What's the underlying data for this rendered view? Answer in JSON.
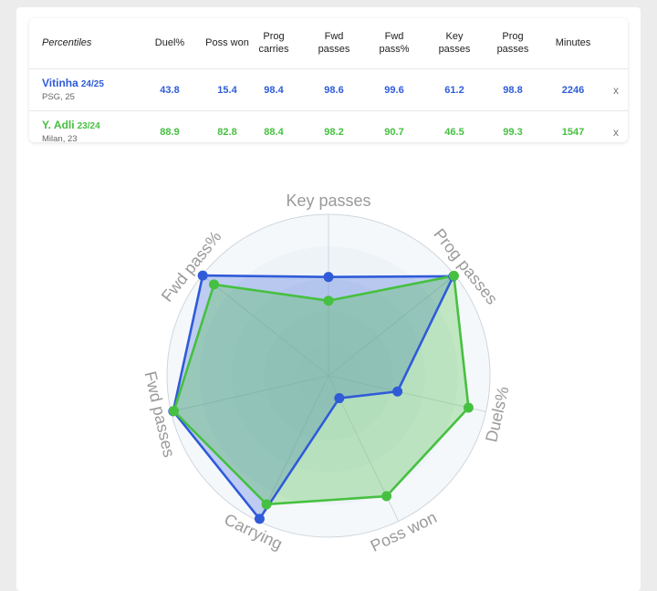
{
  "table": {
    "header": {
      "first": "Percentiles",
      "columns": [
        "Duel%",
        "Poss won",
        "Prog carries",
        "Fwd passes",
        "Fwd pass%",
        "Key passes",
        "Prog passes",
        "Minutes"
      ]
    },
    "players": [
      {
        "name": "Vitinha",
        "season": "24/25",
        "club": "PSG, 25",
        "color": "#2f5bd8",
        "values": [
          "43.8",
          "15.4",
          "98.4",
          "98.6",
          "99.6",
          "61.2",
          "98.8",
          "2246"
        ],
        "remove_label": "x"
      },
      {
        "name": "Y. Adli",
        "season": "23/24",
        "club": "Milan, 23",
        "color": "#46c040",
        "values": [
          "88.9",
          "82.8",
          "88.4",
          "98.2",
          "90.7",
          "46.5",
          "99.3",
          "1547"
        ],
        "remove_label": "x"
      }
    ]
  },
  "radar": {
    "axes": [
      "Key passes",
      "Prog passes",
      "Duels%",
      "Poss won",
      "Carrying",
      "Fwd passes",
      "Fwd pass%"
    ],
    "series": [
      {
        "name": "Vitinha",
        "color": "#2f5bd8",
        "values": [
          61.2,
          98.8,
          43.8,
          15.4,
          98.4,
          98.6,
          99.6
        ]
      },
      {
        "name": "Y. Adli",
        "color": "#46c040",
        "values": [
          46.5,
          99.3,
          88.9,
          82.8,
          88.4,
          98.2,
          90.7
        ]
      }
    ]
  }
}
